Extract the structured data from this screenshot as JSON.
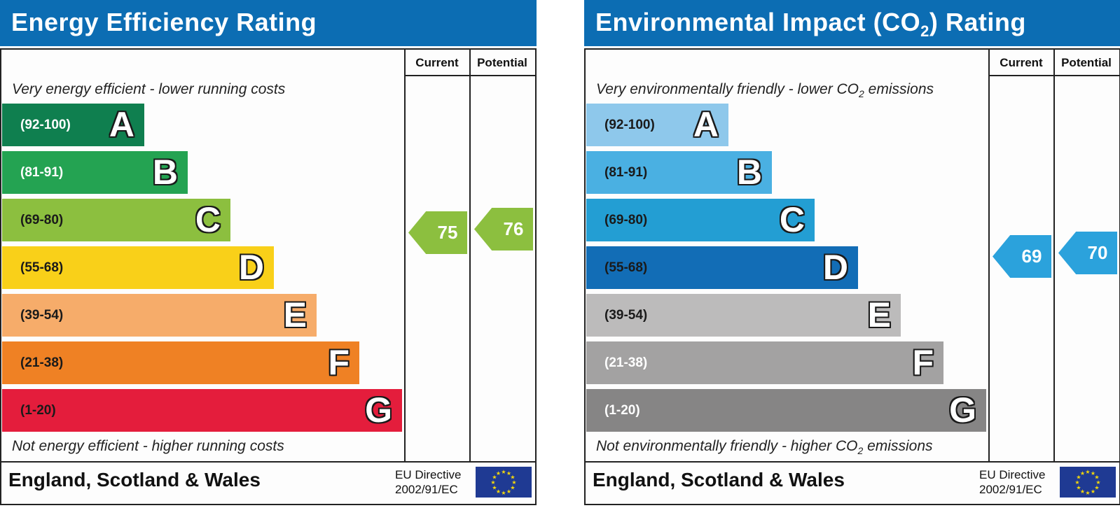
{
  "panels": [
    {
      "title": "Energy Efficiency Rating",
      "title_sub": "",
      "title_after": "",
      "columns": {
        "current": "Current",
        "potential": "Potential"
      },
      "top_caption": {
        "text": "Very energy efficient - lower running costs",
        "sub": "",
        "after": ""
      },
      "bottom_caption": {
        "text": "Not energy efficient - higher running costs",
        "sub": "",
        "after": ""
      },
      "footer": "England, Scotland & Wales",
      "directive": {
        "line1": "EU Directive",
        "line2": "2002/91/EC"
      }
    },
    {
      "title": "Environmental Impact (CO",
      "title_sub": "2",
      "title_after": ") Rating",
      "columns": {
        "current": "Current",
        "potential": "Potential"
      },
      "top_caption": {
        "text": "Very environmentally friendly - lower CO",
        "sub": "2",
        "after": " emissions"
      },
      "bottom_caption": {
        "text": "Not environmentally friendly - higher CO",
        "sub": "2",
        "after": " emissions"
      },
      "footer": "England, Scotland & Wales",
      "directive": {
        "line1": "EU Directive",
        "line2": "2002/91/EC"
      }
    }
  ],
  "chart_data": [
    {
      "type": "bar",
      "title": "Energy Efficiency Rating",
      "categories": [
        "A",
        "B",
        "C",
        "D",
        "E",
        "F",
        "G"
      ],
      "ranges": [
        "(92-100)",
        "(81-91)",
        "(69-80)",
        "(55-68)",
        "(39-54)",
        "(21-38)",
        "(1-20)"
      ],
      "band_colors": [
        "#0f7f4f",
        "#24a352",
        "#8cbf3f",
        "#f9d019",
        "#f6ac6a",
        "#ef8124",
        "#e41d3c"
      ],
      "range_text_colors": [
        "#ffffff",
        "#ffffff",
        "#1a1a1a",
        "#1a1a1a",
        "#1a1a1a",
        "#1a1a1a",
        "#1a1a1a"
      ],
      "current": {
        "value": 75,
        "band": "C",
        "color": "#8cbf3f"
      },
      "potential": {
        "value": 76,
        "band": "C",
        "color": "#8cbf3f"
      }
    },
    {
      "type": "bar",
      "title": "Environmental Impact (CO2) Rating",
      "categories": [
        "A",
        "B",
        "C",
        "D",
        "E",
        "F",
        "G"
      ],
      "ranges": [
        "(92-100)",
        "(81-91)",
        "(69-80)",
        "(55-68)",
        "(39-54)",
        "(21-38)",
        "(1-20)"
      ],
      "band_colors": [
        "#8ec8eb",
        "#4ab0e2",
        "#239ed3",
        "#126db6",
        "#bcbbbb",
        "#a3a2a2",
        "#868585"
      ],
      "range_text_colors": [
        "#1a1a1a",
        "#1a1a1a",
        "#1a1a1a",
        "#1a1a1a",
        "#1a1a1a",
        "#ffffff",
        "#ffffff"
      ],
      "current": {
        "value": 69,
        "band": "C",
        "color": "#2ba2dc"
      },
      "potential": {
        "value": 70,
        "band": "C",
        "color": "#2ba2dc"
      }
    }
  ]
}
